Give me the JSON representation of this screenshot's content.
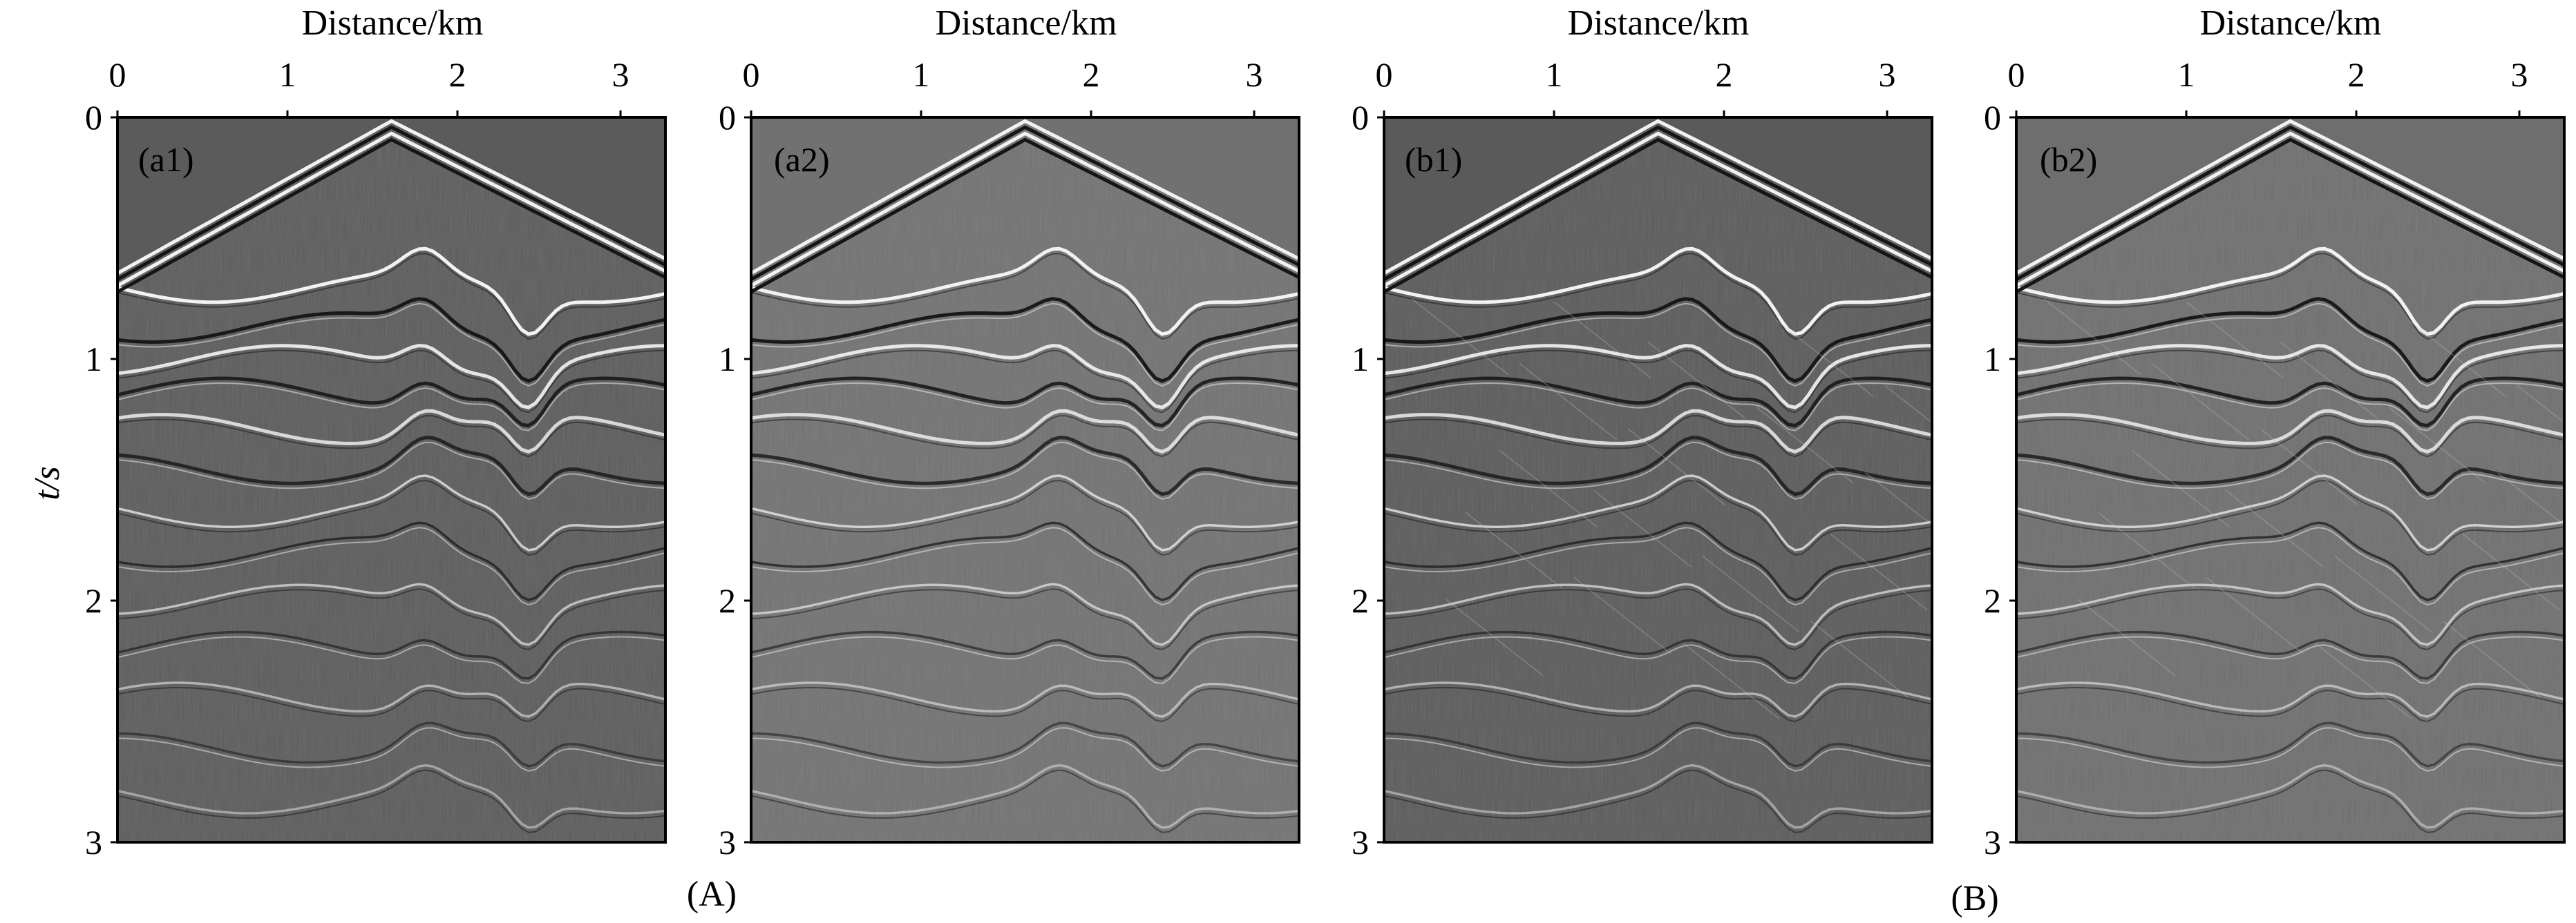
{
  "figure": {
    "panels": [
      {
        "label": "(a1)",
        "xlabel": "Distance/km",
        "xticks": [
          "0",
          "1",
          "2",
          "3"
        ],
        "yticks": [
          "0",
          "1",
          "2",
          "3"
        ],
        "ylabel": "t/s",
        "background": "#5b5b5b"
      },
      {
        "label": "(a2)",
        "xlabel": "Distance/km",
        "xticks": [
          "0",
          "1",
          "2",
          "3"
        ],
        "yticks": [
          "0",
          "1",
          "2",
          "3"
        ],
        "ylabel": "",
        "background": "#717171"
      },
      {
        "label": "(b1)",
        "xlabel": "Distance/km",
        "xticks": [
          "0",
          "1",
          "2",
          "3"
        ],
        "yticks": [
          "0",
          "1",
          "2",
          "3"
        ],
        "ylabel": "",
        "background": "#5a5a5a"
      },
      {
        "label": "(b2)",
        "xlabel": "Distance/km",
        "xticks": [
          "0",
          "1",
          "2",
          "3"
        ],
        "yticks": [
          "0",
          "1",
          "2",
          "3"
        ],
        "ylabel": "",
        "background": "#6e6e6e"
      }
    ],
    "group_labels": [
      "(A)",
      "(B)"
    ],
    "colors": {
      "frame": "#000000",
      "event_bright": "#f2f2f2",
      "event_dark": "#151515"
    }
  }
}
